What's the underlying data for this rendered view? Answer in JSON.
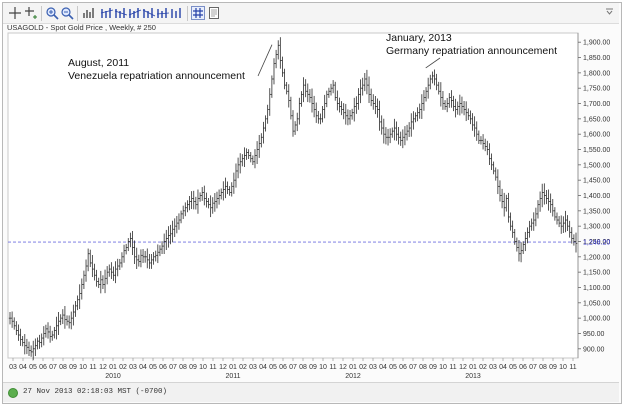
{
  "caption": "USAGOLD - Spot Gold Price , Weekly, # 250",
  "toolbar": {
    "icons": [
      "crosshair-icon",
      "crosshair-ext-icon",
      "zoom-in-icon",
      "zoom-out-icon",
      "bar-chart-icon",
      "bar-style-1-icon",
      "bar-style-2-icon",
      "bar-style-3-icon",
      "bar-style-4-icon",
      "bar-style-5-icon",
      "bar-style-6-icon",
      "grid-icon",
      "page-icon"
    ]
  },
  "status": {
    "timestamp": "27 Nov 2013 02:18:03  MST (-0700)"
  },
  "colors": {
    "bars": "#2b2b2b",
    "reference_line": "#6f6fe0",
    "reference_label": "#3a3ad0",
    "status_ok": "#5cae4e"
  },
  "chart_data": {
    "type": "bar",
    "title": "",
    "ylim": [
      870,
      1930
    ],
    "y_ticks": [
      900,
      950,
      1000,
      1050,
      1100,
      1150,
      1200,
      1250,
      1300,
      1350,
      1400,
      1450,
      1500,
      1550,
      1600,
      1650,
      1700,
      1750,
      1800,
      1850,
      1900
    ],
    "y_tick_labels": [
      "900.00",
      "950.00",
      "1,000.00",
      "1,050.00",
      "1,100.00",
      "1,150.00",
      "1,200.00",
      "1,250.00",
      "1,300.00",
      "1,350.00",
      "1,400.00",
      "1,450.00",
      "1,500.00",
      "1,550.00",
      "1,600.00",
      "1,650.00",
      "1,700.00",
      "1,750.00",
      "1,800.00",
      "1,850.00",
      "1,900.00"
    ],
    "x_month_labels": [
      "03",
      "04",
      "05",
      "06",
      "07",
      "08",
      "09",
      "10",
      "11",
      "12",
      "01",
      "02",
      "03",
      "04",
      "05",
      "06",
      "07",
      "08",
      "09",
      "10",
      "11",
      "12",
      "01",
      "02",
      "03",
      "04",
      "05",
      "06",
      "07",
      "08",
      "09",
      "10",
      "11",
      "12",
      "01",
      "02",
      "03",
      "04",
      "05",
      "06",
      "07",
      "08",
      "09",
      "10",
      "11",
      "12",
      "01",
      "02",
      "03",
      "04",
      "05",
      "06",
      "07",
      "08",
      "09",
      "10",
      "11"
    ],
    "x_year_labels": [
      {
        "label": "2010",
        "month_index": 10
      },
      {
        "label": "2011",
        "month_index": 22
      },
      {
        "label": "2012",
        "month_index": 34
      },
      {
        "label": "2013",
        "month_index": 46
      }
    ],
    "weekly_close": [
      1000,
      990,
      975,
      960,
      945,
      930,
      920,
      910,
      905,
      895,
      890,
      900,
      910,
      925,
      920,
      935,
      950,
      965,
      955,
      940,
      945,
      960,
      975,
      990,
      1000,
      1010,
      995,
      990,
      985,
      1000,
      1020,
      1040,
      1060,
      1080,
      1110,
      1140,
      1170,
      1210,
      1180,
      1160,
      1140,
      1120,
      1110,
      1125,
      1110,
      1130,
      1150,
      1160,
      1150,
      1140,
      1160,
      1170,
      1180,
      1200,
      1220,
      1230,
      1250,
      1260,
      1230,
      1200,
      1190,
      1185,
      1205,
      1200,
      1200,
      1190,
      1180,
      1190,
      1200,
      1205,
      1215,
      1225,
      1235,
      1250,
      1260,
      1270,
      1275,
      1290,
      1300,
      1310,
      1320,
      1340,
      1350,
      1360,
      1370,
      1380,
      1390,
      1380,
      1370,
      1390,
      1400,
      1410,
      1390,
      1380,
      1370,
      1360,
      1375,
      1380,
      1390,
      1400,
      1410,
      1420,
      1430,
      1420,
      1410,
      1430,
      1450,
      1480,
      1500,
      1510,
      1520,
      1530,
      1540,
      1530,
      1520,
      1510,
      1530,
      1550,
      1570,
      1590,
      1620,
      1650,
      1680,
      1730,
      1780,
      1830,
      1860,
      1890,
      1840,
      1800,
      1760,
      1740,
      1710,
      1660,
      1610,
      1630,
      1650,
      1700,
      1730,
      1760,
      1740,
      1730,
      1720,
      1700,
      1680,
      1660,
      1650,
      1650,
      1680,
      1700,
      1730,
      1740,
      1750,
      1760,
      1720,
      1700,
      1690,
      1680,
      1670,
      1660,
      1650,
      1660,
      1670,
      1690,
      1700,
      1730,
      1750,
      1760,
      1780,
      1760,
      1730,
      1710,
      1700,
      1690,
      1680,
      1640,
      1620,
      1600,
      1590,
      1590,
      1600,
      1610,
      1620,
      1600,
      1590,
      1580,
      1590,
      1600,
      1610,
      1620,
      1640,
      1650,
      1660,
      1670,
      1680,
      1700,
      1720,
      1740,
      1760,
      1780,
      1790,
      1780,
      1760,
      1740,
      1720,
      1700,
      1690,
      1700,
      1720,
      1710,
      1690,
      1680,
      1690,
      1700,
      1690,
      1680,
      1670,
      1660,
      1650,
      1630,
      1620,
      1600,
      1580,
      1580,
      1570,
      1560,
      1550,
      1520,
      1500,
      1480,
      1460,
      1430,
      1400,
      1380,
      1360,
      1390,
      1330,
      1300,
      1280,
      1250,
      1230,
      1210,
      1220,
      1240,
      1260,
      1280,
      1300,
      1310,
      1320,
      1340,
      1370,
      1390,
      1410,
      1400,
      1390,
      1380,
      1370,
      1350,
      1330,
      1320,
      1310,
      1300,
      1310,
      1320,
      1300,
      1280,
      1260,
      1250,
      1243
    ],
    "weekly_range": 34,
    "reference_line": {
      "value": 1248.2,
      "label": "1,248.20"
    },
    "annotations": [
      {
        "lines": [
          "August, 2011",
          "Venezuela repatriation announcement"
        ],
        "week_index": 125,
        "value": 1905
      },
      {
        "lines": [
          "January, 2013",
          "Germany repatriation announcement"
        ],
        "week_index": 194,
        "value": 1790
      }
    ]
  }
}
